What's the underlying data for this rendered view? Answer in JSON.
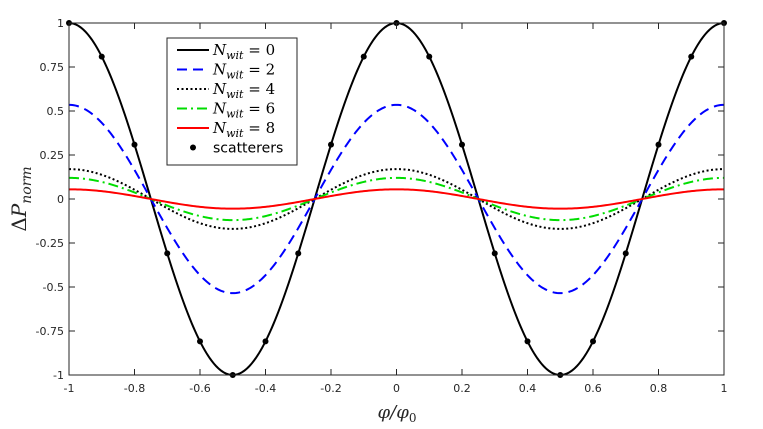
{
  "chart_data": {
    "type": "line",
    "title": "",
    "xlabel": "φ/φ0",
    "ylabel": "ΔPnorm",
    "xlim": [
      -1,
      1
    ],
    "ylim": [
      -1,
      1
    ],
    "grid": false,
    "legend_position": "top-left",
    "x_ticks": [
      -1,
      -0.8,
      -0.6,
      -0.4,
      -0.2,
      0,
      0.2,
      0.4,
      0.6,
      0.8,
      1
    ],
    "x_tick_labels": [
      "-1",
      "-0.8",
      "-0.6",
      "-0.4",
      "-0.2",
      "0",
      "0.2",
      "0.4",
      "0.6",
      "0.8",
      "1"
    ],
    "y_ticks": [
      -1,
      -0.75,
      -0.5,
      -0.25,
      0,
      0.25,
      0.5,
      0.75,
      1
    ],
    "y_tick_labels": [
      "-1",
      "-0.75",
      "-0.5",
      "-0.25",
      "0",
      "0.25",
      "0.5",
      "0.75",
      "1"
    ],
    "series": [
      {
        "name": "N_wit = 0",
        "label_sym": "N",
        "label_sub": "wit",
        "label_rest": " = 0",
        "function": "A*cos(2*pi*x)",
        "amplitude": 1.0,
        "color": "#000000",
        "style": "solid"
      },
      {
        "name": "N_wit = 2",
        "label_sym": "N",
        "label_sub": "wit",
        "label_rest": " = 2",
        "function": "A*cos(2*pi*x)",
        "amplitude": 0.535,
        "color": "#0000ff",
        "style": "dashed"
      },
      {
        "name": "N_wit = 4",
        "label_sym": "N",
        "label_sub": "wit",
        "label_rest": " = 4",
        "function": "A*cos(2*pi*x)",
        "amplitude": 0.17,
        "color": "#000000",
        "style": "dotted"
      },
      {
        "name": "N_wit = 6",
        "label_sym": "N",
        "label_sub": "wit",
        "label_rest": " = 6",
        "function": "A*cos(2*pi*x)",
        "amplitude": 0.12,
        "color": "#00dd00",
        "style": "dashdot"
      },
      {
        "name": "N_wit = 8",
        "label_sym": "N",
        "label_sub": "wit",
        "label_rest": " = 8",
        "function": "A*cos(2*pi*x)",
        "amplitude": 0.055,
        "color": "#ff0000",
        "style": "solid"
      }
    ],
    "scatter": {
      "name": "scatterers",
      "color": "#000000",
      "x": [
        -1,
        -0.9,
        -0.8,
        -0.7,
        -0.6,
        -0.5,
        -0.4,
        -0.3,
        -0.2,
        -0.1,
        0,
        0.1,
        0.2,
        0.3,
        0.4,
        0.5,
        0.6,
        0.7,
        0.8,
        0.9,
        1
      ],
      "y": [
        1,
        0.809,
        0.309,
        -0.309,
        -0.809,
        -1,
        -0.809,
        -0.309,
        0.309,
        0.809,
        1,
        0.809,
        0.309,
        -0.309,
        -0.809,
        -1,
        -0.809,
        -0.309,
        0.309,
        0.809,
        1
      ]
    }
  }
}
